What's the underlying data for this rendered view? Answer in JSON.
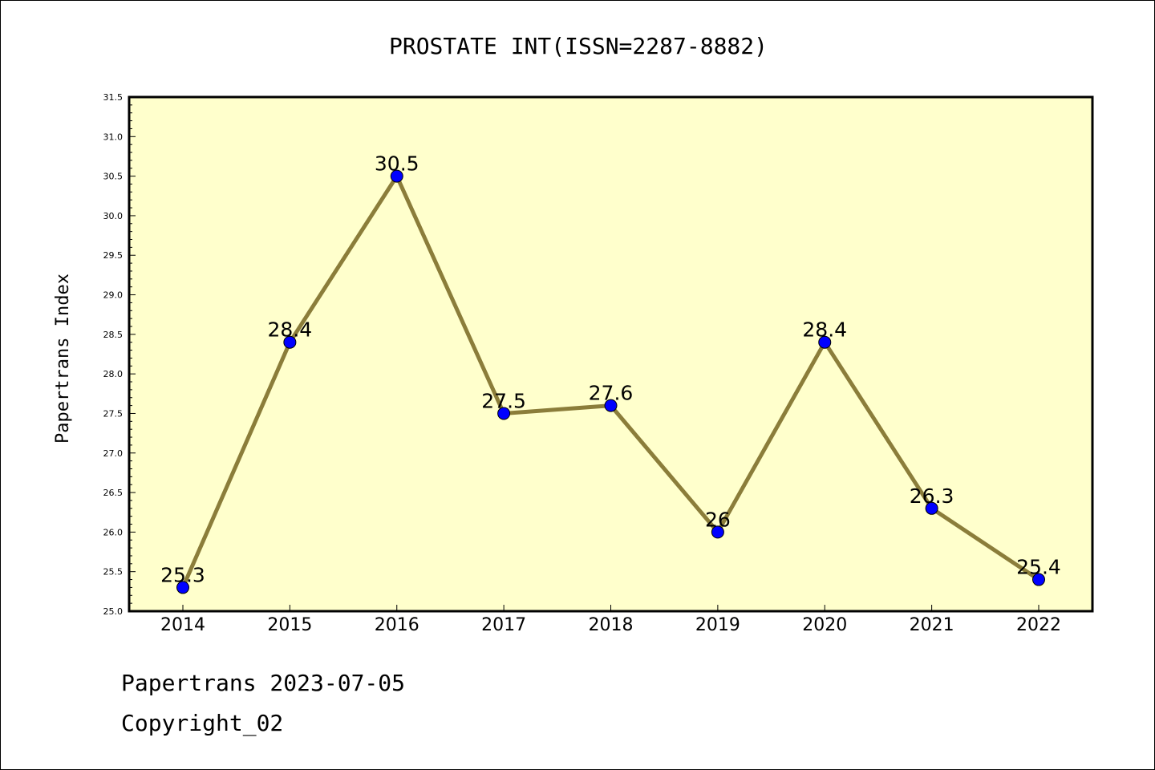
{
  "chart_data": {
    "type": "line",
    "title": "PROSTATE INT(ISSN=2287-8882)",
    "xlabel": "",
    "ylabel": "Papertrans Index",
    "categories": [
      "2014",
      "2015",
      "2016",
      "2017",
      "2018",
      "2019",
      "2020",
      "2021",
      "2022"
    ],
    "series": [
      {
        "values": [
          25.3,
          28.4,
          30.5,
          27.5,
          27.6,
          26,
          28.4,
          26.3,
          25.4
        ],
        "data_labels": [
          "25.3",
          "28.4",
          "30.5",
          "27.5",
          "27.6",
          "26",
          "28.4",
          "26.3",
          "25.4"
        ]
      }
    ],
    "ylim": [
      25.0,
      31.5
    ],
    "yticks": [
      "25.0",
      "25.5",
      "26.0",
      "26.5",
      "27.0",
      "27.5",
      "28.0",
      "28.5",
      "29.0",
      "29.5",
      "30.0",
      "30.5",
      "31.0",
      "31.5"
    ],
    "grid": false,
    "colors": {
      "plot_background": "#ffffcc",
      "line": "#8b7d3a",
      "marker": "#0000ff"
    }
  },
  "footer": {
    "line1": "Papertrans 2023-07-05",
    "line2": "Copyright_02"
  }
}
